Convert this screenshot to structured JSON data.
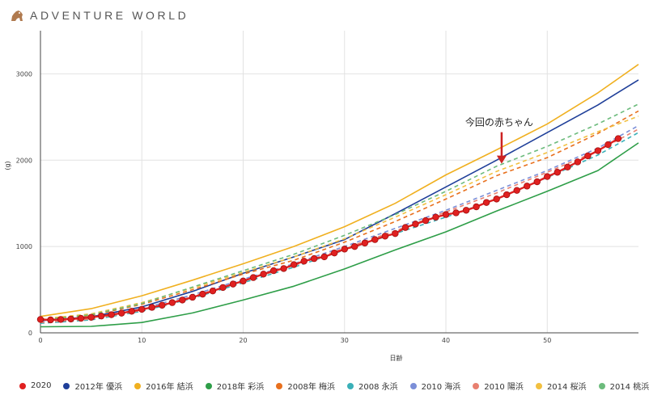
{
  "brand": {
    "name": "ADVENTURE WORLD",
    "logo_icon": "animal-logo-icon",
    "logo_color": "#b07a4f"
  },
  "chart_data": {
    "type": "line",
    "title": "",
    "xlabel": "日齢",
    "ylabel": "(g)",
    "xlim": [
      0,
      59
    ],
    "ylim": [
      0,
      3500
    ],
    "xticks": [
      0,
      10,
      20,
      30,
      40,
      50
    ],
    "yticks": [
      0,
      1000,
      2000,
      3000
    ],
    "grid": true,
    "legend_position": "bottom",
    "annotation": {
      "text": "今回の赤ちゃん",
      "x": 45.5,
      "y": 1950,
      "arrow_color": "#cc2222"
    },
    "series": [
      {
        "name": "2020",
        "color": "#e02020",
        "style": "markers",
        "x": [
          0,
          1,
          2,
          3,
          4,
          5,
          6,
          7,
          8,
          9,
          10,
          11,
          12,
          13,
          14,
          15,
          16,
          17,
          18,
          19,
          20,
          21,
          22,
          23,
          24,
          25,
          26,
          27,
          28,
          29,
          30,
          31,
          32,
          33,
          34,
          35,
          36,
          37,
          38,
          39,
          40,
          41,
          42,
          43,
          44,
          45,
          46,
          47,
          48,
          49,
          50,
          51,
          52,
          53,
          54,
          55,
          56,
          57
        ],
        "y": [
          155,
          150,
          155,
          160,
          168,
          180,
          195,
          210,
          228,
          250,
          272,
          295,
          320,
          350,
          380,
          412,
          448,
          485,
          525,
          565,
          600,
          640,
          680,
          720,
          745,
          790,
          830,
          860,
          880,
          925,
          970,
          1000,
          1040,
          1080,
          1120,
          1150,
          1220,
          1260,
          1300,
          1340,
          1370,
          1390,
          1420,
          1460,
          1510,
          1550,
          1600,
          1650,
          1700,
          1750,
          1810,
          1860,
          1920,
          1980,
          2050,
          2110,
          2180,
          2250
        ]
      },
      {
        "name": "2012年 優浜",
        "color": "#1f3f99",
        "style": "solid",
        "x": [
          0,
          5,
          10,
          15,
          20,
          25,
          30,
          35,
          40,
          45,
          50,
          55,
          59
        ],
        "y": [
          140,
          185,
          300,
          480,
          690,
          880,
          1080,
          1380,
          1690,
          2000,
          2320,
          2640,
          2930
        ]
      },
      {
        "name": "2016年 結浜",
        "color": "#f0b020",
        "style": "solid",
        "x": [
          0,
          5,
          10,
          15,
          20,
          25,
          30,
          35,
          40,
          45,
          50,
          55,
          59
        ],
        "y": [
          190,
          280,
          430,
          610,
          800,
          1000,
          1230,
          1500,
          1830,
          2120,
          2420,
          2780,
          3110
        ]
      },
      {
        "name": "2018年 彩浜",
        "color": "#2e9e48",
        "style": "solid",
        "x": [
          0,
          5,
          10,
          15,
          20,
          25,
          30,
          35,
          40,
          45,
          50,
          55,
          59
        ],
        "y": [
          70,
          75,
          120,
          230,
          380,
          540,
          740,
          960,
          1170,
          1410,
          1640,
          1880,
          2200
        ]
      },
      {
        "name": "2008年 梅浜",
        "color": "#e8701e",
        "style": "dashed",
        "x": [
          0,
          5,
          10,
          15,
          20,
          25,
          30,
          35,
          40,
          45,
          50,
          55,
          59
        ],
        "y": [
          150,
          200,
          330,
          500,
          680,
          840,
          1050,
          1290,
          1550,
          1820,
          2030,
          2310,
          2570
        ]
      },
      {
        "name": "2008 永浜",
        "color": "#3ab0b8",
        "style": "dashed",
        "x": [
          0,
          5,
          10,
          15,
          20,
          25,
          30,
          35,
          40,
          45,
          50,
          55,
          59
        ],
        "y": [
          110,
          150,
          250,
          400,
          580,
          760,
          960,
          1150,
          1340,
          1550,
          1800,
          2060,
          2320
        ]
      },
      {
        "name": "2010 海浜",
        "color": "#7b8fd8",
        "style": "dashed",
        "x": [
          0,
          5,
          10,
          15,
          20,
          25,
          30,
          35,
          40,
          45,
          50,
          55,
          59
        ],
        "y": [
          130,
          170,
          280,
          440,
          620,
          800,
          1000,
          1210,
          1420,
          1650,
          1880,
          2140,
          2400
        ]
      },
      {
        "name": "2010 陽浜",
        "color": "#e88070",
        "style": "dashed",
        "x": [
          0,
          5,
          10,
          15,
          20,
          25,
          30,
          35,
          40,
          45,
          50,
          55,
          59
        ],
        "y": [
          120,
          160,
          260,
          420,
          600,
          780,
          980,
          1180,
          1400,
          1620,
          1860,
          2110,
          2360
        ]
      },
      {
        "name": "2014 桜浜",
        "color": "#f2c040",
        "style": "dashed",
        "x": [
          0,
          5,
          10,
          15,
          20,
          25,
          30,
          35,
          40,
          45,
          50,
          55,
          59
        ],
        "y": [
          160,
          220,
          350,
          520,
          700,
          880,
          1090,
          1340,
          1600,
          1870,
          2090,
          2330,
          2510
        ]
      },
      {
        "name": "2014 桃浜",
        "color": "#6cbb7c",
        "style": "dashed",
        "x": [
          0,
          5,
          10,
          15,
          20,
          25,
          30,
          35,
          40,
          45,
          50,
          55,
          59
        ],
        "y": [
          150,
          210,
          340,
          530,
          720,
          910,
          1130,
          1370,
          1640,
          1930,
          2160,
          2420,
          2650
        ]
      }
    ]
  }
}
